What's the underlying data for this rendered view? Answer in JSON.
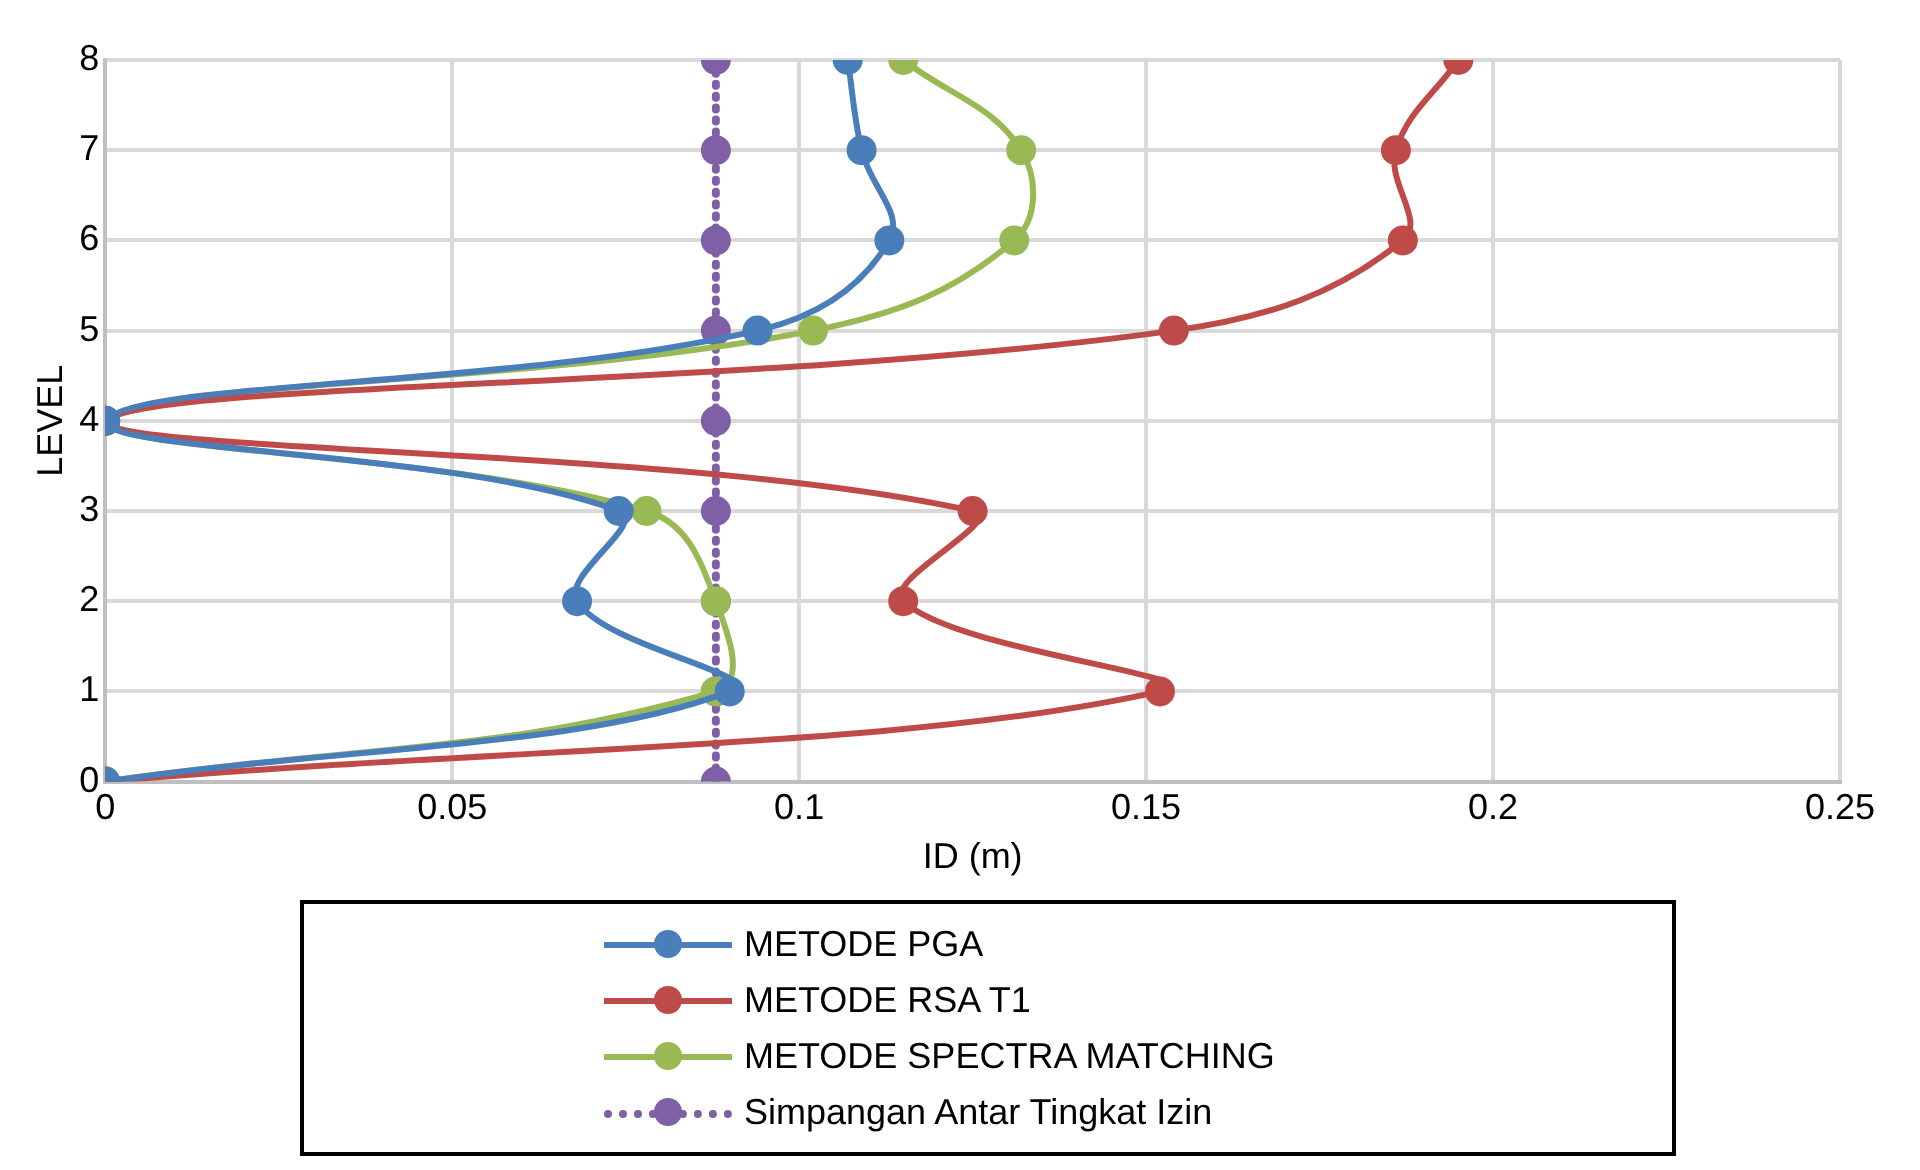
{
  "chart_data": {
    "type": "line",
    "xlabel": "ID (m)",
    "ylabel": "LEVEL",
    "xlim": [
      0,
      0.25
    ],
    "xticks": [
      0,
      0.05,
      0.1,
      0.15,
      0.2,
      0.25
    ],
    "ylim": [
      0,
      8
    ],
    "yticks": [
      0,
      1,
      2,
      3,
      4,
      5,
      6,
      7,
      8
    ],
    "grid": true,
    "legend": "bottom",
    "marker": "circle",
    "line_style": "solid",
    "series": [
      {
        "name": "METODE PGA",
        "color": "#4a7ebb",
        "x": [
          0,
          0.09,
          0.068,
          0.074,
          0,
          0.094,
          0.113,
          0.109,
          0.107
        ],
        "values": [
          0,
          1,
          2,
          3,
          4,
          5,
          6,
          7,
          8
        ]
      },
      {
        "name": "METODE RSA T1",
        "color": "#be4b48",
        "x": [
          0,
          0.152,
          0.115,
          0.125,
          0,
          0.154,
          0.187,
          0.186,
          0.195
        ],
        "values": [
          0,
          1,
          2,
          3,
          4,
          5,
          6,
          7,
          8
        ]
      },
      {
        "name": "METODE SPECTRA MATCHING",
        "color": "#98b954",
        "x": [
          0,
          0.088,
          0.088,
          0.078,
          0,
          0.102,
          0.131,
          0.132,
          0.115
        ],
        "values": [
          0,
          1,
          2,
          3,
          4,
          5,
          6,
          7,
          8
        ]
      },
      {
        "name": "Simpangan Antar Tingkat Izin",
        "color": "#7f5fa5",
        "line_style": "dotted",
        "type": "line",
        "x": [
          0.088,
          0.088,
          0.088,
          0.088,
          0.088,
          0.088,
          0.088,
          0.088,
          0.088
        ],
        "values": [
          0,
          1,
          2,
          3,
          4,
          5,
          6,
          7,
          8
        ]
      }
    ]
  }
}
